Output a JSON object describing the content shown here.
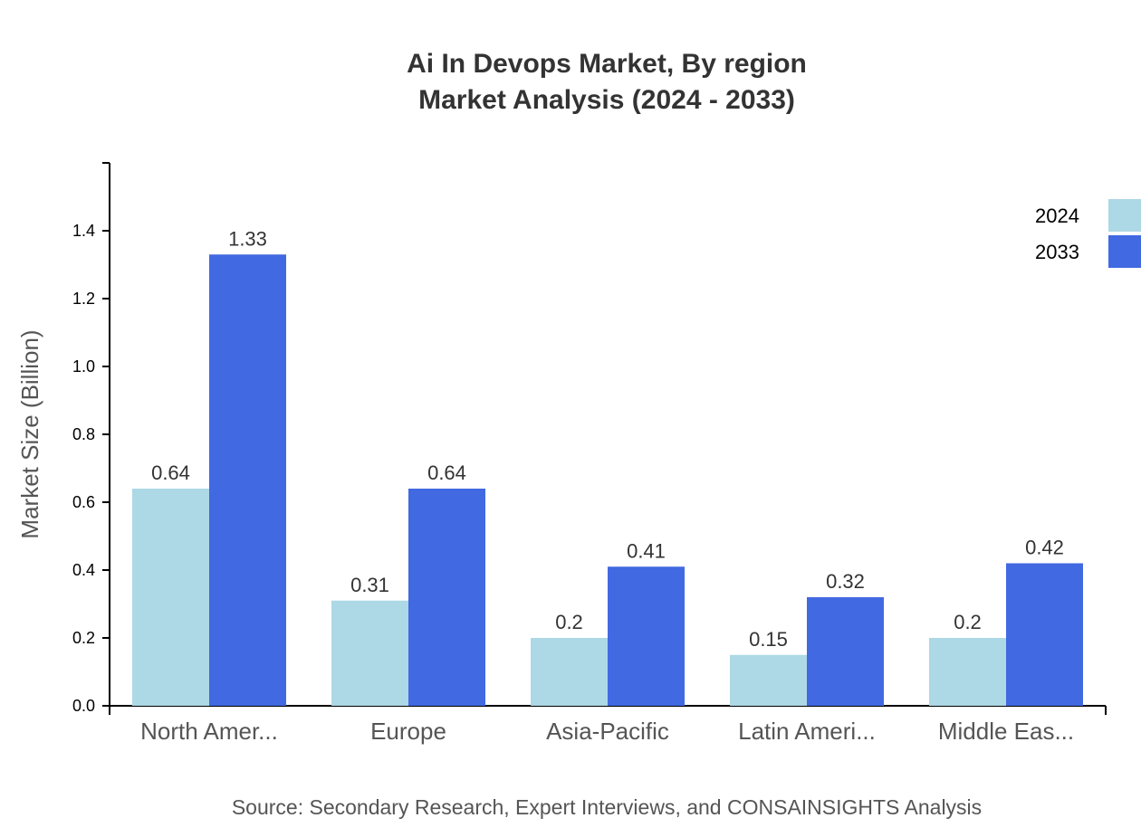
{
  "chart_data": {
    "type": "bar",
    "title": "Ai In Devops Market, By region",
    "subtitle": "Market Analysis (2024 - 2033)",
    "xlabel": "",
    "ylabel": "Market Size (Billion)",
    "ylim": [
      0,
      1.6
    ],
    "yticks": [
      "0.0",
      "0.2",
      "0.4",
      "0.6",
      "0.8",
      "1.0",
      "1.2",
      "1.4"
    ],
    "categories": [
      "North Amer...",
      "Europe",
      "Asia-Pacific",
      "Latin Ameri...",
      "Middle Eas..."
    ],
    "series": [
      {
        "name": "2024",
        "color": "#add8e6",
        "values": [
          0.64,
          0.31,
          0.2,
          0.15,
          0.2
        ],
        "labels": [
          "0.64",
          "0.31",
          "0.2",
          "0.15",
          "0.2"
        ]
      },
      {
        "name": "2033",
        "color": "#4169e1",
        "values": [
          1.33,
          0.64,
          0.41,
          0.32,
          0.42
        ],
        "labels": [
          "1.33",
          "0.64",
          "0.41",
          "0.32",
          "0.42"
        ]
      }
    ],
    "grid": false,
    "legend_position": "top-right",
    "source": "Source: Secondary Research, Expert Interviews, and CONSAINSIGHTS Analysis"
  }
}
